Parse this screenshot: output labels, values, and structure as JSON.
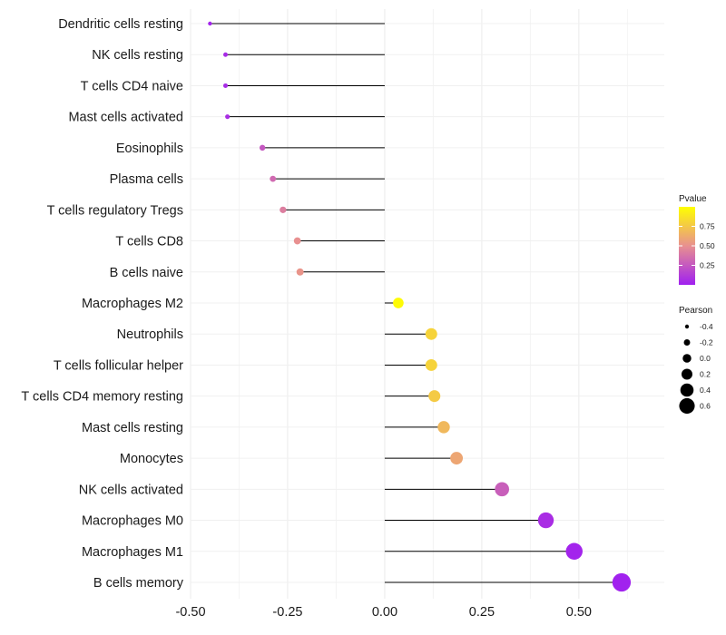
{
  "chart_data": {
    "type": "lollipop",
    "title": "",
    "xlabel": "",
    "ylabel": "",
    "xlim": [
      -0.5,
      0.72
    ],
    "x_ticks": [
      -0.5,
      -0.25,
      0.0,
      0.25,
      0.5
    ],
    "x_tick_labels": [
      "-0.50",
      "-0.25",
      "0.00",
      "0.25",
      "0.50"
    ],
    "grid": true,
    "categories": [
      "Dendritic cells resting",
      "NK cells resting",
      "T cells CD4 naive",
      "Mast cells activated",
      "Eosinophils",
      "Plasma cells",
      "T cells regulatory  Tregs ",
      "T cells CD8",
      "B cells naive",
      "Macrophages M2",
      "Neutrophils",
      "T cells follicular helper",
      "T cells CD4 memory resting",
      "Mast cells resting",
      "Monocytes",
      "NK cells activated",
      "Macrophages M0",
      "Macrophages M1",
      "B cells memory"
    ],
    "pearson": [
      -0.45,
      -0.41,
      -0.41,
      -0.405,
      -0.315,
      -0.288,
      -0.262,
      -0.225,
      -0.218,
      0.035,
      0.12,
      0.12,
      0.128,
      0.152,
      0.185,
      0.302,
      0.415,
      0.488,
      0.61
    ],
    "pvalue": [
      0.02,
      0.05,
      0.05,
      0.06,
      0.25,
      0.33,
      0.42,
      0.5,
      0.52,
      0.98,
      0.8,
      0.8,
      0.76,
      0.68,
      0.6,
      0.28,
      0.06,
      0.02,
      0.01
    ],
    "legend": {
      "color": {
        "title": "Pvalue",
        "ticks": [
          0.25,
          0.5,
          0.75
        ],
        "tick_labels": [
          "0.25",
          "0.50",
          "0.75"
        ],
        "range": [
          0.0,
          1.0
        ],
        "low_color": "#a020f0",
        "mid_color": "#e89090",
        "high_color": "#ffff00"
      },
      "size": {
        "title": "Pearson",
        "values": [
          -0.4,
          -0.2,
          0.0,
          0.2,
          0.4,
          0.6
        ],
        "labels": [
          "-0.4",
          "-0.2",
          "0.0",
          "0.2",
          "0.4",
          "0.6"
        ]
      },
      "position": "right"
    }
  }
}
